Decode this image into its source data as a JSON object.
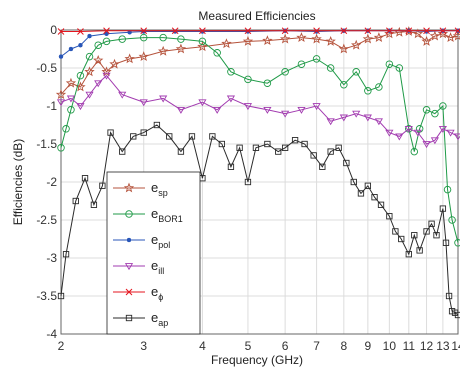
{
  "chart_data": {
    "type": "line",
    "title": "Measured Efficiencies",
    "xlabel": "Frequency (GHz)",
    "ylabel": "Efficiencies (dB)",
    "x_scale": "log",
    "xlim": [
      2,
      14
    ],
    "ylim": [
      -4,
      0
    ],
    "grid": true,
    "legend_position": "bottom-left",
    "x_ticks": [
      "2",
      "3",
      "4",
      "5",
      "6",
      "7",
      "8",
      "9",
      "10",
      "11",
      "12",
      "13",
      "14"
    ],
    "y_ticks": [
      "0",
      "-0.5",
      "-1",
      "-1.5",
      "-2",
      "-2.5",
      "-3",
      "-3.5",
      "-4"
    ],
    "series": [
      {
        "name": "e_sp",
        "label_main": "e",
        "label_sub": "sp",
        "color": "#b5533c",
        "marker": "star",
        "x": [
          2.0,
          2.1,
          2.2,
          2.3,
          2.4,
          2.5,
          2.6,
          2.8,
          3.0,
          3.3,
          3.6,
          4.0,
          4.5,
          5.0,
          5.5,
          6.0,
          6.5,
          7.0,
          7.5,
          8.0,
          8.5,
          9.0,
          9.5,
          10.0,
          10.5,
          11.0,
          11.5,
          12.0,
          12.5,
          13.0,
          13.5,
          14.0
        ],
        "y": [
          -0.85,
          -0.7,
          -0.75,
          -0.55,
          -0.4,
          -0.55,
          -0.45,
          -0.38,
          -0.35,
          -0.28,
          -0.25,
          -0.22,
          -0.18,
          -0.15,
          -0.14,
          -0.12,
          -0.1,
          -0.12,
          -0.15,
          -0.25,
          -0.2,
          -0.12,
          -0.1,
          -0.05,
          -0.03,
          -0.02,
          -0.05,
          -0.15,
          -0.08,
          -0.05,
          -0.1,
          -0.08
        ]
      },
      {
        "name": "e_BOR1",
        "label_main": "e",
        "label_sub": "BOR1",
        "color": "#1f9a47",
        "marker": "circle",
        "x": [
          2.0,
          2.05,
          2.1,
          2.2,
          2.3,
          2.4,
          2.5,
          2.7,
          3.0,
          3.3,
          3.6,
          4.0,
          4.3,
          4.6,
          5.0,
          5.5,
          6.0,
          6.5,
          7.0,
          7.5,
          8.0,
          8.5,
          9.0,
          9.5,
          10.0,
          10.5,
          11.0,
          11.3,
          11.6,
          12.0,
          12.5,
          13.0,
          13.3,
          13.6,
          14.0
        ],
        "y": [
          -1.55,
          -1.3,
          -1.05,
          -0.6,
          -0.35,
          -0.2,
          -0.15,
          -0.12,
          -0.1,
          -0.1,
          -0.12,
          -0.15,
          -0.3,
          -0.55,
          -0.65,
          -0.7,
          -0.55,
          -0.45,
          -0.38,
          -0.5,
          -0.72,
          -0.55,
          -0.8,
          -0.75,
          -0.45,
          -0.5,
          -1.3,
          -1.6,
          -1.3,
          -1.05,
          -1.1,
          -1.0,
          -2.1,
          -2.5,
          -2.8
        ]
      },
      {
        "name": "e_pol",
        "label_main": "e",
        "label_sub": "pol",
        "color": "#2856b8",
        "marker": "dot",
        "x": [
          2.0,
          2.1,
          2.2,
          2.3,
          2.5,
          2.8,
          3.0,
          3.5,
          4.0,
          5.0,
          6.0,
          7.0,
          8.0,
          9.0,
          10.0,
          11.0,
          12.0,
          13.0,
          14.0
        ],
        "y": [
          -0.35,
          -0.25,
          -0.2,
          -0.08,
          -0.05,
          -0.03,
          -0.02,
          -0.02,
          -0.02,
          -0.02,
          -0.01,
          -0.02,
          -0.01,
          -0.01,
          -0.01,
          -0.01,
          -0.02,
          -0.01,
          -0.01
        ]
      },
      {
        "name": "e_ill",
        "label_main": "e",
        "label_sub": "ill",
        "color": "#a23bb0",
        "marker": "triangle-down",
        "x": [
          2.0,
          2.1,
          2.2,
          2.3,
          2.4,
          2.5,
          2.7,
          3.0,
          3.3,
          3.6,
          4.0,
          4.3,
          4.6,
          5.0,
          5.5,
          6.0,
          6.5,
          7.0,
          7.5,
          8.0,
          8.5,
          9.0,
          9.5,
          10.0,
          10.5,
          11.0,
          11.5,
          12.0,
          12.5,
          13.0,
          13.5,
          14.0
        ],
        "y": [
          -0.95,
          -0.9,
          -1.0,
          -0.85,
          -0.7,
          -0.6,
          -0.85,
          -0.95,
          -0.9,
          -1.05,
          -0.95,
          -1.05,
          -0.9,
          -1.0,
          -1.05,
          -1.1,
          -1.05,
          -1.0,
          -1.2,
          -1.15,
          -1.1,
          -1.15,
          -1.2,
          -1.35,
          -1.4,
          -1.3,
          -1.35,
          -1.5,
          -1.45,
          -1.3,
          -1.35,
          -1.4
        ]
      },
      {
        "name": "e_phi",
        "label_main": "e",
        "label_sub": "ϕ",
        "color": "#e4161f",
        "marker": "x",
        "x": [
          2.0,
          2.2,
          2.5,
          3.0,
          3.5,
          4.0,
          5.0,
          6.0,
          7.0,
          8.0,
          9.0,
          10.0,
          11.0,
          12.0,
          13.0,
          14.0
        ],
        "y": [
          -0.02,
          -0.02,
          -0.01,
          -0.01,
          -0.01,
          -0.01,
          -0.01,
          -0.01,
          -0.01,
          -0.01,
          -0.01,
          -0.01,
          -0.01,
          -0.01,
          -0.01,
          -0.01
        ]
      },
      {
        "name": "e_ap",
        "label_main": "e",
        "label_sub": "ap",
        "color": "#2b2b2b",
        "marker": "square",
        "x": [
          2.0,
          2.05,
          2.15,
          2.25,
          2.35,
          2.45,
          2.55,
          2.7,
          2.85,
          3.0,
          3.2,
          3.4,
          3.6,
          3.8,
          4.0,
          4.2,
          4.4,
          4.6,
          4.8,
          5.0,
          5.2,
          5.5,
          5.8,
          6.0,
          6.3,
          6.6,
          6.9,
          7.2,
          7.5,
          7.8,
          8.1,
          8.4,
          8.7,
          9.0,
          9.3,
          9.6,
          10.0,
          10.3,
          10.6,
          11.0,
          11.3,
          11.6,
          12.0,
          12.3,
          12.6,
          13.0,
          13.2,
          13.4,
          13.6,
          13.8,
          14.0
        ],
        "y": [
          -3.5,
          -2.95,
          -2.25,
          -1.95,
          -2.3,
          -2.05,
          -1.35,
          -1.6,
          -1.4,
          -1.35,
          -1.25,
          -1.4,
          -1.6,
          -1.4,
          -1.95,
          -1.4,
          -1.5,
          -1.8,
          -1.55,
          -2.0,
          -1.55,
          -1.5,
          -1.6,
          -1.55,
          -1.45,
          -1.5,
          -1.65,
          -1.8,
          -1.6,
          -1.55,
          -1.75,
          -2.0,
          -2.15,
          -2.05,
          -2.2,
          -2.3,
          -2.45,
          -2.65,
          -2.75,
          -2.95,
          -2.7,
          -2.9,
          -2.65,
          -2.55,
          -2.7,
          -2.35,
          -2.8,
          -3.5,
          -3.7,
          -3.72,
          -3.75
        ]
      }
    ]
  }
}
